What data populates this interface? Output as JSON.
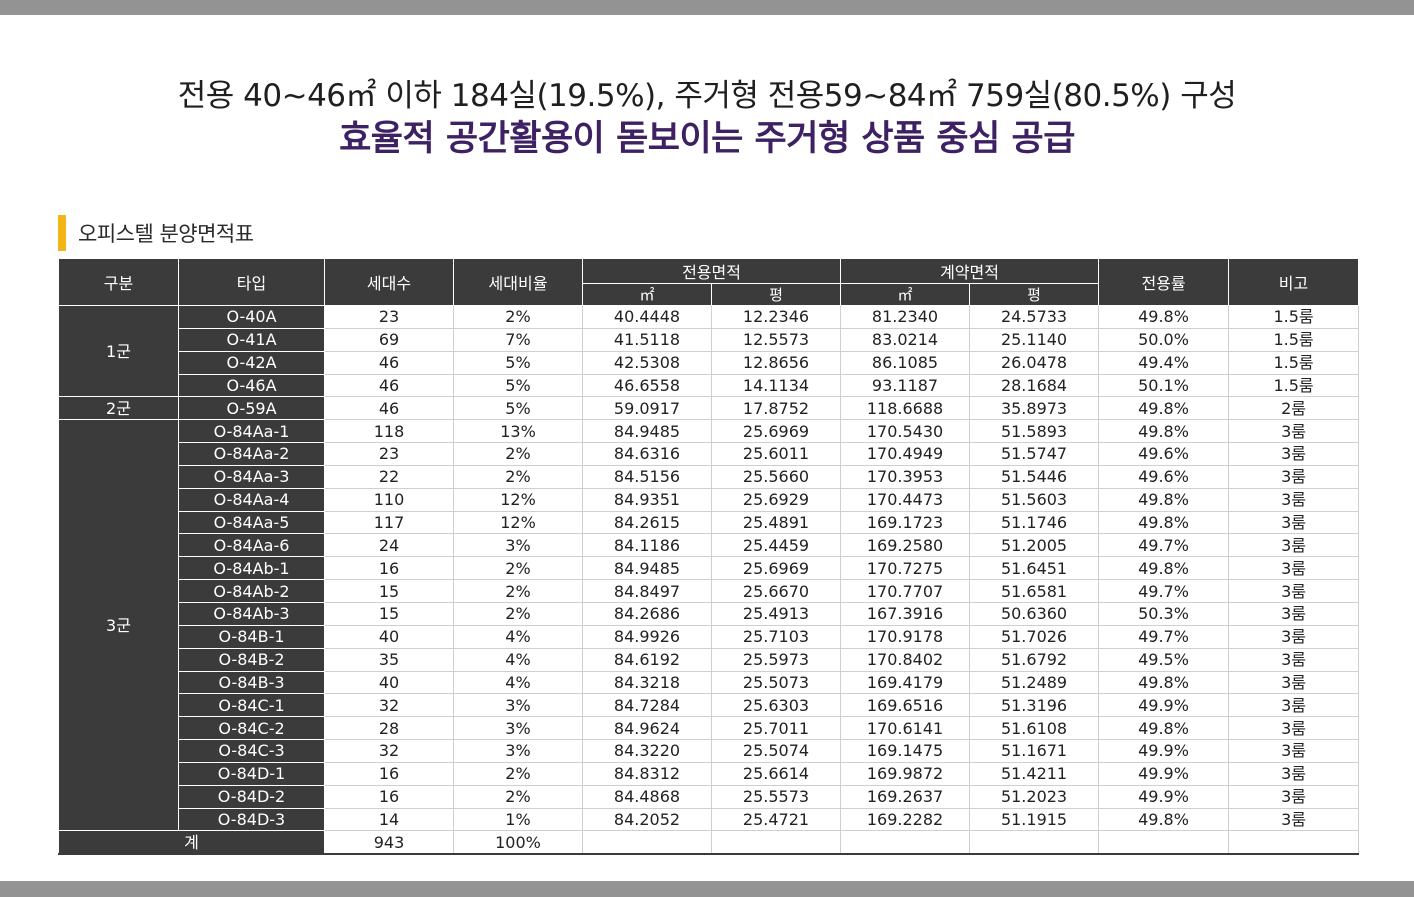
{
  "header": {
    "line1": "전용 40~46㎡ 이하 184실(19.5%), 주거형 전용59~84㎡ 759실(80.5%) 구성",
    "line2": "효율적 공간활용이 돋보이는 주거형 상품 중심 공급"
  },
  "section": {
    "title": "오피스텔 분양면적표"
  },
  "colors": {
    "accent": "#f2b416",
    "title": "#3d2163",
    "header_bg": "#3b3b3b",
    "bars": "#939393"
  },
  "table": {
    "headers": {
      "group": "구분",
      "type": "타입",
      "units": "세대수",
      "ratio": "세대비율",
      "exclusive": "전용면적",
      "contract": "계약면적",
      "sqm": "㎡",
      "pyeong": "평",
      "efficiency": "전용률",
      "note": "비고"
    },
    "groups": [
      {
        "label": "1군",
        "rows": [
          [
            "O-40A",
            "23",
            "2%",
            "40.4448",
            "12.2346",
            "81.2340",
            "24.5733",
            "49.8%",
            "1.5룸"
          ],
          [
            "O-41A",
            "69",
            "7%",
            "41.5118",
            "12.5573",
            "83.0214",
            "25.1140",
            "50.0%",
            "1.5룸"
          ],
          [
            "O-42A",
            "46",
            "5%",
            "42.5308",
            "12.8656",
            "86.1085",
            "26.0478",
            "49.4%",
            "1.5룸"
          ],
          [
            "O-46A",
            "46",
            "5%",
            "46.6558",
            "14.1134",
            "93.1187",
            "28.1684",
            "50.1%",
            "1.5룸"
          ]
        ]
      },
      {
        "label": "2군",
        "rows": [
          [
            "O-59A",
            "46",
            "5%",
            "59.0917",
            "17.8752",
            "118.6688",
            "35.8973",
            "49.8%",
            "2룸"
          ]
        ]
      },
      {
        "label": "3군",
        "rows": [
          [
            "O-84Aa-1",
            "118",
            "13%",
            "84.9485",
            "25.6969",
            "170.5430",
            "51.5893",
            "49.8%",
            "3룸"
          ],
          [
            "O-84Aa-2",
            "23",
            "2%",
            "84.6316",
            "25.6011",
            "170.4949",
            "51.5747",
            "49.6%",
            "3룸"
          ],
          [
            "O-84Aa-3",
            "22",
            "2%",
            "84.5156",
            "25.5660",
            "170.3953",
            "51.5446",
            "49.6%",
            "3룸"
          ],
          [
            "O-84Aa-4",
            "110",
            "12%",
            "84.9351",
            "25.6929",
            "170.4473",
            "51.5603",
            "49.8%",
            "3룸"
          ],
          [
            "O-84Aa-5",
            "117",
            "12%",
            "84.2615",
            "25.4891",
            "169.1723",
            "51.1746",
            "49.8%",
            "3룸"
          ],
          [
            "O-84Aa-6",
            "24",
            "3%",
            "84.1186",
            "25.4459",
            "169.2580",
            "51.2005",
            "49.7%",
            "3룸"
          ],
          [
            "O-84Ab-1",
            "16",
            "2%",
            "84.9485",
            "25.6969",
            "170.7275",
            "51.6451",
            "49.8%",
            "3룸"
          ],
          [
            "O-84Ab-2",
            "15",
            "2%",
            "84.8497",
            "25.6670",
            "170.7707",
            "51.6581",
            "49.7%",
            "3룸"
          ],
          [
            "O-84Ab-3",
            "15",
            "2%",
            "84.2686",
            "25.4913",
            "167.3916",
            "50.6360",
            "50.3%",
            "3룸"
          ],
          [
            "O-84B-1",
            "40",
            "4%",
            "84.9926",
            "25.7103",
            "170.9178",
            "51.7026",
            "49.7%",
            "3룸"
          ],
          [
            "O-84B-2",
            "35",
            "4%",
            "84.6192",
            "25.5973",
            "170.8402",
            "51.6792",
            "49.5%",
            "3룸"
          ],
          [
            "O-84B-3",
            "40",
            "4%",
            "84.3218",
            "25.5073",
            "169.4179",
            "51.2489",
            "49.8%",
            "3룸"
          ],
          [
            "O-84C-1",
            "32",
            "3%",
            "84.7284",
            "25.6303",
            "169.6516",
            "51.3196",
            "49.9%",
            "3룸"
          ],
          [
            "O-84C-2",
            "28",
            "3%",
            "84.9624",
            "25.7011",
            "170.6141",
            "51.6108",
            "49.8%",
            "3룸"
          ],
          [
            "O-84C-3",
            "32",
            "3%",
            "84.3220",
            "25.5074",
            "169.1475",
            "51.1671",
            "49.9%",
            "3룸"
          ],
          [
            "O-84D-1",
            "16",
            "2%",
            "84.8312",
            "25.6614",
            "169.9872",
            "51.4211",
            "49.9%",
            "3룸"
          ],
          [
            "O-84D-2",
            "16",
            "2%",
            "84.4868",
            "25.5573",
            "169.2637",
            "51.2023",
            "49.9%",
            "3룸"
          ],
          [
            "O-84D-3",
            "14",
            "1%",
            "84.2052",
            "25.4721",
            "169.2282",
            "51.1915",
            "49.8%",
            "3룸"
          ]
        ]
      }
    ],
    "total": {
      "label": "계",
      "units": "943",
      "ratio": "100%"
    }
  }
}
